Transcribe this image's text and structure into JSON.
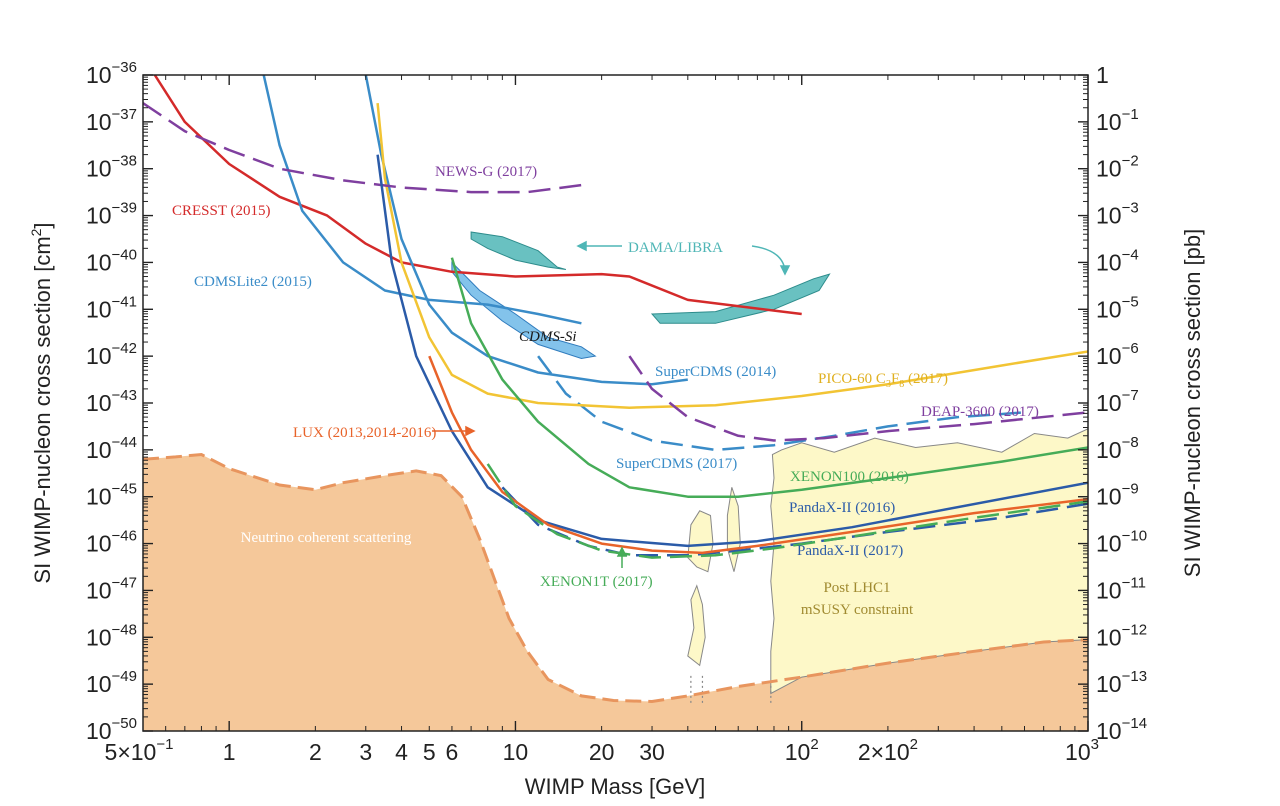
{
  "chart_data": {
    "type": "line",
    "title": "",
    "xlabel": "WIMP Mass [GeV]",
    "ylabel_left": "SI WIMP-nucleon cross section [cm",
    "ylabel_left_sup": "2",
    "ylabel_left_end": "]",
    "ylabel_right": "SI WIMP-nucleon cross section [pb]",
    "xscale": "log",
    "yscale": "log",
    "xlim": [
      0.5,
      1000
    ],
    "ylim_cm2": [
      1e-50,
      1e-36
    ],
    "x_ticks": [
      {
        "v": 0.5,
        "m": "5×10",
        "e": "−1"
      },
      {
        "v": 1,
        "m": "1",
        "e": ""
      },
      {
        "v": 2,
        "m": "2",
        "e": ""
      },
      {
        "v": 3,
        "m": "3",
        "e": ""
      },
      {
        "v": 4,
        "m": "4",
        "e": ""
      },
      {
        "v": 5,
        "m": "5",
        "e": ""
      },
      {
        "v": 6,
        "m": "6",
        "e": ""
      },
      {
        "v": 10,
        "m": "10",
        "e": ""
      },
      {
        "v": 20,
        "m": "20",
        "e": ""
      },
      {
        "v": 30,
        "m": "30",
        "e": ""
      },
      {
        "v": 100,
        "m": "10",
        "e": "2"
      },
      {
        "v": 200,
        "m": "2×10",
        "e": "2"
      },
      {
        "v": 1000,
        "m": "10",
        "e": "3"
      }
    ],
    "y_ticks_left": [
      {
        "v": -36,
        "m": "10",
        "e": "−36"
      },
      {
        "v": -37,
        "m": "10",
        "e": "−37"
      },
      {
        "v": -38,
        "m": "10",
        "e": "−38"
      },
      {
        "v": -39,
        "m": "10",
        "e": "−39"
      },
      {
        "v": -40,
        "m": "10",
        "e": "−40"
      },
      {
        "v": -41,
        "m": "10",
        "e": "−41"
      },
      {
        "v": -42,
        "m": "10",
        "e": "−42"
      },
      {
        "v": -43,
        "m": "10",
        "e": "−43"
      },
      {
        "v": -44,
        "m": "10",
        "e": "−44"
      },
      {
        "v": -45,
        "m": "10",
        "e": "−45"
      },
      {
        "v": -46,
        "m": "10",
        "e": "−46"
      },
      {
        "v": -47,
        "m": "10",
        "e": "−47"
      },
      {
        "v": -48,
        "m": "10",
        "e": "−48"
      },
      {
        "v": -49,
        "m": "10",
        "e": "−49"
      },
      {
        "v": -50,
        "m": "10",
        "e": "−50"
      }
    ],
    "y_ticks_right": [
      {
        "v": -36,
        "m": "1",
        "e": ""
      },
      {
        "v": -37,
        "m": "10",
        "e": "−1"
      },
      {
        "v": -38,
        "m": "10",
        "e": "−2"
      },
      {
        "v": -39,
        "m": "10",
        "e": "−3"
      },
      {
        "v": -40,
        "m": "10",
        "e": "−4"
      },
      {
        "v": -41,
        "m": "10",
        "e": "−5"
      },
      {
        "v": -42,
        "m": "10",
        "e": "−6"
      },
      {
        "v": -43,
        "m": "10",
        "e": "−7"
      },
      {
        "v": -44,
        "m": "10",
        "e": "−8"
      },
      {
        "v": -45,
        "m": "10",
        "e": "−9"
      },
      {
        "v": -46,
        "m": "10",
        "e": "−10"
      },
      {
        "v": -47,
        "m": "10",
        "e": "−11"
      },
      {
        "v": -48,
        "m": "10",
        "e": "−12"
      },
      {
        "v": -49,
        "m": "10",
        "e": "−13"
      },
      {
        "v": -50,
        "m": "10",
        "e": "−14"
      }
    ],
    "regions": [
      {
        "name": "Neutrino coherent scattering",
        "color": "#f5c89a",
        "edge_color": "#e8955e",
        "boundary": [
          [
            0.5,
            -44.2
          ],
          [
            0.65,
            -44.15
          ],
          [
            0.8,
            -44.1
          ],
          [
            1,
            -44.4
          ],
          [
            1.5,
            -44.75
          ],
          [
            2,
            -44.85
          ],
          [
            2.5,
            -44.7
          ],
          [
            3.5,
            -44.55
          ],
          [
            4.5,
            -44.45
          ],
          [
            5.5,
            -44.55
          ],
          [
            6.5,
            -45.0
          ],
          [
            7.5,
            -45.9
          ],
          [
            8.5,
            -46.8
          ],
          [
            9.5,
            -47.6
          ],
          [
            11,
            -48.3
          ],
          [
            13,
            -48.9
          ],
          [
            17,
            -49.25
          ],
          [
            22,
            -49.35
          ],
          [
            30,
            -49.37
          ],
          [
            40,
            -49.25
          ],
          [
            60,
            -49.05
          ],
          [
            100,
            -48.85
          ],
          [
            200,
            -48.55
          ],
          [
            400,
            -48.3
          ],
          [
            700,
            -48.1
          ],
          [
            1000,
            -48.05
          ]
        ]
      },
      {
        "name": "Post LHC1 mSUSY constraint",
        "line1": "Post LHC1",
        "line2": "mSUSY constraint",
        "color": "#fdf8c8",
        "edge_color": "#888888",
        "boundary": [
          [
            78,
            -49.2
          ],
          [
            78,
            -48.3
          ],
          [
            80,
            -47.6
          ],
          [
            78,
            -46.8
          ],
          [
            80,
            -46.0
          ],
          [
            78,
            -45.2
          ],
          [
            80,
            -44.6
          ],
          [
            79,
            -44.1
          ],
          [
            85,
            -44.0
          ],
          [
            100,
            -43.85
          ],
          [
            130,
            -44.05
          ],
          [
            180,
            -43.75
          ],
          [
            250,
            -43.95
          ],
          [
            350,
            -43.85
          ],
          [
            500,
            -44.05
          ],
          [
            650,
            -43.65
          ],
          [
            850,
            -43.75
          ],
          [
            1000,
            -43.55
          ],
          [
            1000,
            -48.05
          ],
          [
            700,
            -48.1
          ],
          [
            400,
            -48.3
          ],
          [
            200,
            -48.55
          ],
          [
            100,
            -48.85
          ]
        ]
      }
    ],
    "series": [
      {
        "name": "CRESST (2015)",
        "color": "#d42a2a",
        "dash": false,
        "points": [
          [
            0.55,
            -36.0
          ],
          [
            0.7,
            -37.0
          ],
          [
            1.0,
            -37.9
          ],
          [
            1.5,
            -38.6
          ],
          [
            2.2,
            -39.0
          ],
          [
            3.0,
            -39.6
          ],
          [
            4.0,
            -40.0
          ],
          [
            6.0,
            -40.2
          ],
          [
            10,
            -40.3
          ],
          [
            20,
            -40.25
          ],
          [
            25,
            -40.3
          ],
          [
            40,
            -40.8
          ],
          [
            100,
            -41.1
          ]
        ]
      },
      {
        "name": "CDMSLite2 (2015)",
        "color": "#3a8cc8",
        "dash": false,
        "points": [
          [
            1.32,
            -36.0
          ],
          [
            1.5,
            -37.5
          ],
          [
            1.8,
            -38.9
          ],
          [
            2.5,
            -40.0
          ],
          [
            3.5,
            -40.6
          ],
          [
            5,
            -40.8
          ],
          [
            8,
            -40.9
          ],
          [
            12,
            -41.1
          ],
          [
            17,
            -41.3
          ]
        ]
      },
      {
        "name": "SuperCDMS (2014)",
        "color": "#3a8cc8",
        "dash": false,
        "points": [
          [
            3.0,
            -36.0
          ],
          [
            3.4,
            -37.7
          ],
          [
            4.0,
            -39.5
          ],
          [
            5,
            -40.9
          ],
          [
            6,
            -41.5
          ],
          [
            8,
            -42.0
          ],
          [
            12,
            -42.35
          ],
          [
            20,
            -42.55
          ],
          [
            30,
            -42.6
          ],
          [
            40,
            -42.5
          ]
        ]
      },
      {
        "name": "SuperCDMS (2017)",
        "color": "#3a8cc8",
        "dash": true,
        "points": [
          [
            12,
            -42.0
          ],
          [
            15,
            -42.8
          ],
          [
            20,
            -43.4
          ],
          [
            30,
            -43.8
          ],
          [
            50,
            -44.0
          ],
          [
            80,
            -43.9
          ],
          [
            130,
            -43.7
          ],
          [
            200,
            -43.5
          ],
          [
            350,
            -43.3
          ],
          [
            600,
            -43.2
          ]
        ]
      },
      {
        "name": "PICO-60 C3F8 (2017)",
        "labelMain": "PICO-60 C",
        "labelSub1": "3",
        "labelMid": "F",
        "labelSub2": "8",
        "labelEnd": " (2017)",
        "color": "#f2c434",
        "dash": false,
        "points": [
          [
            3.3,
            -36.6
          ],
          [
            3.5,
            -38.2
          ],
          [
            4,
            -40.0
          ],
          [
            5,
            -41.6
          ],
          [
            6,
            -42.4
          ],
          [
            8,
            -42.8
          ],
          [
            12,
            -43.0
          ],
          [
            25,
            -43.1
          ],
          [
            50,
            -43.05
          ],
          [
            100,
            -42.85
          ],
          [
            200,
            -42.6
          ],
          [
            500,
            -42.2
          ],
          [
            1000,
            -41.9
          ]
        ]
      },
      {
        "name": "NEWS-G (2017)",
        "color": "#7f3f9f",
        "dash": true,
        "points": [
          [
            0.5,
            -36.6
          ],
          [
            0.7,
            -37.2
          ],
          [
            1.0,
            -37.6
          ],
          [
            1.5,
            -38.0
          ],
          [
            2.5,
            -38.25
          ],
          [
            4,
            -38.4
          ],
          [
            7,
            -38.5
          ],
          [
            11,
            -38.5
          ],
          [
            17,
            -38.35
          ]
        ]
      },
      {
        "name": "DEAP-3600 (2017)",
        "color": "#7f3f9f",
        "dash": true,
        "points": [
          [
            25,
            -42.0
          ],
          [
            30,
            -42.7
          ],
          [
            40,
            -43.3
          ],
          [
            60,
            -43.7
          ],
          [
            80,
            -43.8
          ],
          [
            120,
            -43.75
          ],
          [
            200,
            -43.6
          ],
          [
            400,
            -43.45
          ],
          [
            1000,
            -43.2
          ]
        ]
      },
      {
        "name": "XENON100 (2016)",
        "color": "#46ac58",
        "dash": false,
        "points": [
          [
            6,
            -39.9
          ],
          [
            7,
            -41.3
          ],
          [
            9,
            -42.5
          ],
          [
            12,
            -43.4
          ],
          [
            18,
            -44.3
          ],
          [
            25,
            -44.8
          ],
          [
            40,
            -45.0
          ],
          [
            60,
            -45.0
          ],
          [
            100,
            -44.85
          ],
          [
            200,
            -44.6
          ],
          [
            500,
            -44.25
          ],
          [
            1000,
            -43.95
          ]
        ]
      },
      {
        "name": "PandaX-II (2016)",
        "color": "#2b5ba8",
        "dash": false,
        "points": [
          [
            3.3,
            -37.7
          ],
          [
            3.7,
            -40.0
          ],
          [
            4.5,
            -42.0
          ],
          [
            6,
            -43.6
          ],
          [
            8,
            -44.8
          ],
          [
            12,
            -45.5
          ],
          [
            20,
            -45.9
          ],
          [
            40,
            -46.05
          ],
          [
            70,
            -45.95
          ],
          [
            150,
            -45.65
          ],
          [
            300,
            -45.3
          ],
          [
            1000,
            -44.7
          ]
        ]
      },
      {
        "name": "PandaX-II (2017)",
        "color": "#2b5ba8",
        "dash": true,
        "points": [
          [
            9,
            -44.8
          ],
          [
            12,
            -45.6
          ],
          [
            18,
            -46.05
          ],
          [
            25,
            -46.25
          ],
          [
            40,
            -46.25
          ],
          [
            60,
            -46.15
          ],
          [
            100,
            -46.0
          ],
          [
            200,
            -45.75
          ],
          [
            500,
            -45.45
          ],
          [
            1000,
            -45.15
          ]
        ]
      },
      {
        "name": "LUX (2013,2014-2016)",
        "color": "#e8632a",
        "dash": false,
        "points": [
          [
            5,
            -42.0
          ],
          [
            6,
            -43.2
          ],
          [
            7,
            -44.0
          ],
          [
            9,
            -44.9
          ],
          [
            13,
            -45.6
          ],
          [
            20,
            -46.0
          ],
          [
            30,
            -46.15
          ],
          [
            45,
            -46.2
          ],
          [
            70,
            -46.05
          ],
          [
            150,
            -45.75
          ],
          [
            400,
            -45.35
          ],
          [
            1000,
            -45.05
          ]
        ]
      },
      {
        "name": "XENON1T (2017)",
        "color": "#46ac58",
        "dash": true,
        "points": [
          [
            8,
            -44.3
          ],
          [
            10,
            -45.2
          ],
          [
            14,
            -45.8
          ],
          [
            20,
            -46.15
          ],
          [
            30,
            -46.3
          ],
          [
            50,
            -46.25
          ],
          [
            80,
            -46.1
          ],
          [
            150,
            -45.85
          ],
          [
            400,
            -45.45
          ],
          [
            1000,
            -45.1
          ]
        ]
      }
    ],
    "contours": [
      {
        "name": "CDMS-Si",
        "color": "#6db8e8",
        "edge_color": "#2f7bbd",
        "points": [
          [
            6.0,
            -40.0
          ],
          [
            7.5,
            -40.6
          ],
          [
            10,
            -41.1
          ],
          [
            13,
            -41.6
          ],
          [
            17,
            -41.8
          ],
          [
            19,
            -42.0
          ],
          [
            17,
            -42.05
          ],
          [
            12,
            -41.75
          ],
          [
            9,
            -41.25
          ],
          [
            7,
            -40.7
          ],
          [
            6.0,
            -40.2
          ]
        ]
      },
      {
        "name": "DAMA/LIBRA low",
        "color": "#4fb6b6",
        "edge_color": "#2d8c8c",
        "points": [
          [
            7,
            -39.35
          ],
          [
            9,
            -39.45
          ],
          [
            12,
            -39.75
          ],
          [
            14,
            -40.1
          ],
          [
            15,
            -40.15
          ],
          [
            13,
            -40.1
          ],
          [
            10,
            -39.95
          ],
          [
            8,
            -39.7
          ],
          [
            7,
            -39.5
          ]
        ]
      },
      {
        "name": "DAMA/LIBRA high",
        "color": "#4fb6b6",
        "edge_color": "#2d8c8c",
        "points": [
          [
            30,
            -41.1
          ],
          [
            50,
            -41.05
          ],
          [
            80,
            -40.7
          ],
          [
            110,
            -40.35
          ],
          [
            125,
            -40.25
          ],
          [
            115,
            -40.6
          ],
          [
            80,
            -41.0
          ],
          [
            50,
            -41.3
          ],
          [
            32,
            -41.3
          ]
        ]
      }
    ],
    "annotations": [
      {
        "text": "CRESST (2015)",
        "color": "#d42a2a"
      },
      {
        "text": "CDMSLite2 (2015)",
        "color": "#3a8cc8"
      },
      {
        "text": "NEWS-G (2017)",
        "color": "#7f3f9f"
      },
      {
        "text": "DAMA/LIBRA",
        "color": "#4fb6b6"
      },
      {
        "text": "CDMS-Si",
        "color": "#1a1a1a"
      },
      {
        "text": "SuperCDMS (2014)",
        "color": "#3a8cc8"
      },
      {
        "text": "PICO-60 C3F8 (2017)",
        "color": "#e0b020"
      },
      {
        "text": "DEAP-3600 (2017)",
        "color": "#7f3f9f"
      },
      {
        "text": "LUX (2013,2014-2016)",
        "color": "#e8632a"
      },
      {
        "text": "SuperCDMS (2017)",
        "color": "#3a8cc8"
      },
      {
        "text": "XENON100 (2016)",
        "color": "#46ac58"
      },
      {
        "text": "PandaX-II (2016)",
        "color": "#2b5ba8"
      },
      {
        "text": "PandaX-II (2017)",
        "color": "#2b5ba8"
      },
      {
        "text": "XENON1T (2017)",
        "color": "#46ac58"
      },
      {
        "text": "Neutrino coherent scattering",
        "color": "#ffffff"
      },
      {
        "text": "Post LHC1 mSUSY constraint",
        "color": "#a08a30"
      }
    ]
  }
}
